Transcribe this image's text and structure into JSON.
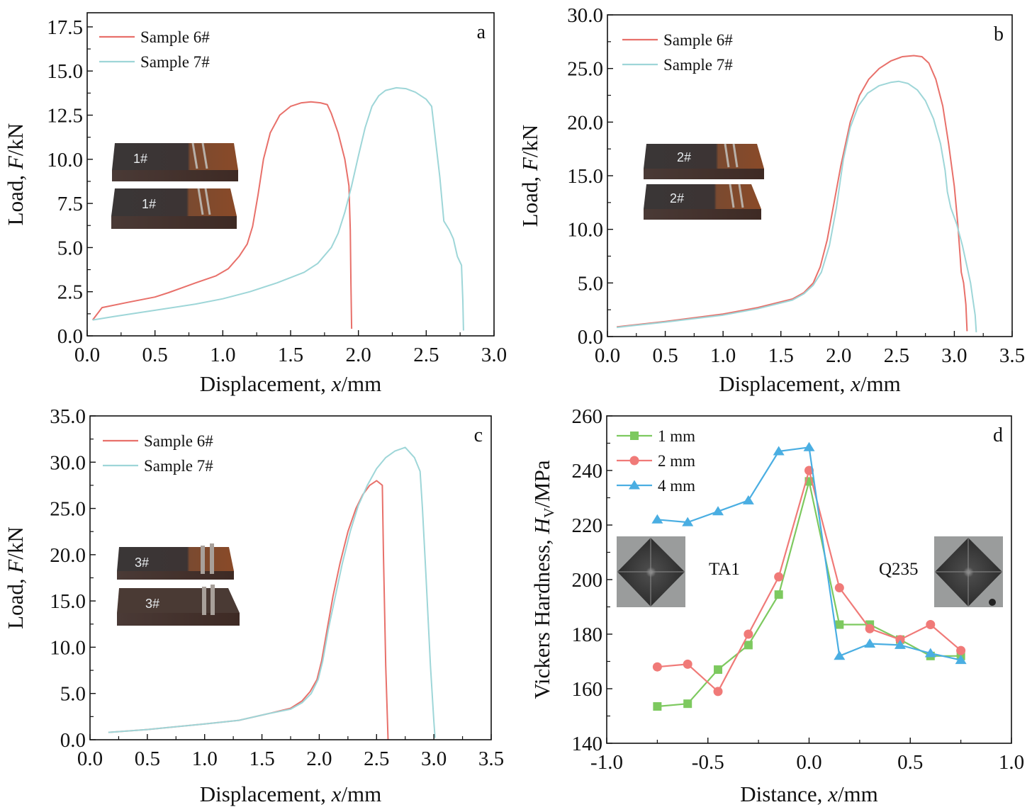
{
  "colors": {
    "sample6": "#E8706A",
    "sample7": "#9ED6D8",
    "d_1mm": "#7DC95F",
    "d_2mm": "#F07A78",
    "d_4mm": "#4AAEE2"
  },
  "chart_data": [
    {
      "id": "a",
      "type": "line",
      "panel_label": "a",
      "xlabel": "Displacement, x/mm",
      "ylabel": "Load, F/kN",
      "xlim": [
        0.0,
        3.0
      ],
      "ylim": [
        0.0,
        18.3
      ],
      "xticks": [
        "0.0",
        "0.5",
        "1.0",
        "1.5",
        "2.0",
        "2.5",
        "3.0"
      ],
      "xtick_values": [
        0.0,
        0.5,
        1.0,
        1.5,
        2.0,
        2.5,
        3.0
      ],
      "yticks": [
        "0.0",
        "2.5",
        "5.0",
        "7.5",
        "10.0",
        "12.5",
        "15.0",
        "17.5"
      ],
      "ytick_values": [
        0.0,
        2.5,
        5.0,
        7.5,
        10.0,
        12.5,
        15.0,
        17.5
      ],
      "legend": "top-left",
      "inset": "photo of two welded specimens labelled 1#",
      "series": [
        {
          "name": "Sample 6#",
          "x": [
            0.04,
            0.11,
            0.3,
            0.5,
            0.6,
            0.8,
            0.95,
            1.04,
            1.12,
            1.18,
            1.22,
            1.26,
            1.3,
            1.35,
            1.42,
            1.5,
            1.58,
            1.65,
            1.72,
            1.77,
            1.8,
            1.85,
            1.9,
            1.93,
            1.94,
            1.945,
            1.95
          ],
          "y": [
            0.9,
            1.6,
            1.9,
            2.2,
            2.45,
            3.0,
            3.4,
            3.8,
            4.5,
            5.2,
            6.2,
            8.0,
            10.0,
            11.5,
            12.5,
            13.0,
            13.2,
            13.25,
            13.2,
            13.1,
            12.6,
            11.5,
            10.0,
            8.5,
            6.0,
            3.0,
            0.4
          ]
        },
        {
          "name": "Sample 7#",
          "x": [
            0.04,
            0.2,
            0.5,
            0.8,
            1.0,
            1.2,
            1.4,
            1.6,
            1.7,
            1.8,
            1.85,
            1.9,
            1.95,
            2.0,
            2.05,
            2.1,
            2.15,
            2.2,
            2.28,
            2.35,
            2.42,
            2.5,
            2.54,
            2.57,
            2.6,
            2.63,
            2.67,
            2.7,
            2.73,
            2.76,
            2.77,
            2.775
          ],
          "y": [
            0.9,
            1.1,
            1.45,
            1.8,
            2.1,
            2.5,
            3.0,
            3.6,
            4.1,
            5.0,
            5.8,
            7.0,
            8.5,
            10.2,
            11.8,
            13.0,
            13.6,
            13.9,
            14.05,
            14.0,
            13.8,
            13.4,
            13.0,
            11.0,
            9.0,
            6.5,
            6.0,
            5.5,
            4.5,
            4.0,
            2.0,
            0.3
          ]
        }
      ]
    },
    {
      "id": "b",
      "type": "line",
      "panel_label": "b",
      "xlabel": "Displacement, x/mm",
      "ylabel": "Load, F/kN",
      "xlim": [
        0.0,
        3.5
      ],
      "ylim": [
        0.0,
        30.0
      ],
      "xticks": [
        "0.0",
        "0.5",
        "1.0",
        "1.5",
        "2.0",
        "2.5",
        "3.0",
        "3.5"
      ],
      "xtick_values": [
        0.0,
        0.5,
        1.0,
        1.5,
        2.0,
        2.5,
        3.0,
        3.5
      ],
      "yticks": [
        "0.0",
        "5.0",
        "10.0",
        "15.0",
        "20.0",
        "25.0",
        "30.0"
      ],
      "ytick_values": [
        0.0,
        5.0,
        10.0,
        15.0,
        20.0,
        25.0,
        30.0
      ],
      "legend": "top-left",
      "inset": "photo of two welded specimens labelled 2#",
      "series": [
        {
          "name": "Sample 6#",
          "x": [
            0.08,
            0.5,
            1.0,
            1.3,
            1.6,
            1.7,
            1.78,
            1.84,
            1.9,
            1.96,
            2.02,
            2.1,
            2.18,
            2.26,
            2.35,
            2.45,
            2.55,
            2.65,
            2.72,
            2.78,
            2.84,
            2.9,
            2.95,
            3.0,
            3.03,
            3.05,
            3.06,
            3.08,
            3.1,
            3.11
          ],
          "y": [
            0.9,
            1.4,
            2.1,
            2.7,
            3.5,
            4.1,
            5.0,
            6.5,
            9.0,
            12.5,
            16.0,
            20.0,
            22.5,
            24.0,
            25.0,
            25.7,
            26.1,
            26.2,
            26.1,
            25.5,
            24.0,
            21.5,
            18.0,
            14.0,
            10.5,
            7.5,
            6.0,
            5.0,
            3.0,
            0.5
          ]
        },
        {
          "name": "Sample 7#",
          "x": [
            0.08,
            0.5,
            1.0,
            1.3,
            1.6,
            1.7,
            1.78,
            1.85,
            1.92,
            1.98,
            2.04,
            2.1,
            2.17,
            2.25,
            2.35,
            2.45,
            2.52,
            2.6,
            2.68,
            2.75,
            2.82,
            2.88,
            2.92,
            2.94,
            2.97,
            3.02,
            3.07,
            3.11,
            3.14,
            3.16,
            3.18,
            3.19
          ],
          "y": [
            0.85,
            1.35,
            2.0,
            2.6,
            3.4,
            4.0,
            4.8,
            6.0,
            8.5,
            12.0,
            16.5,
            19.5,
            21.5,
            22.7,
            23.4,
            23.7,
            23.8,
            23.6,
            23.0,
            22.0,
            20.3,
            18.0,
            15.5,
            13.5,
            12.0,
            10.5,
            8.5,
            6.5,
            5.0,
            3.5,
            2.0,
            0.4
          ]
        }
      ]
    },
    {
      "id": "c",
      "type": "line",
      "panel_label": "c",
      "xlabel": "Displacement, x/mm",
      "ylabel": "Load, F/kN",
      "xlim": [
        0.0,
        3.5
      ],
      "ylim": [
        0.0,
        35.0
      ],
      "xticks": [
        "0.0",
        "0.5",
        "1.0",
        "1.5",
        "2.0",
        "2.5",
        "3.0",
        "3.5"
      ],
      "xtick_values": [
        0.0,
        0.5,
        1.0,
        1.5,
        2.0,
        2.5,
        3.0,
        3.5
      ],
      "yticks": [
        "0.0",
        "5.0",
        "10.0",
        "15.0",
        "20.0",
        "25.0",
        "30.0",
        "35.0"
      ],
      "ytick_values": [
        0.0,
        5.0,
        10.0,
        15.0,
        20.0,
        25.0,
        30.0,
        35.0
      ],
      "legend": "top-left",
      "inset": "photo of two welded specimens labelled 3#",
      "series": [
        {
          "name": "Sample 6#",
          "x": [
            0.16,
            0.5,
            1.0,
            1.3,
            1.55,
            1.75,
            1.85,
            1.92,
            1.98,
            2.02,
            2.07,
            2.12,
            2.18,
            2.25,
            2.32,
            2.38,
            2.44,
            2.5,
            2.55,
            2.56,
            2.58,
            2.6
          ],
          "y": [
            0.8,
            1.1,
            1.7,
            2.1,
            2.8,
            3.4,
            4.2,
            5.2,
            6.5,
            8.5,
            12.0,
            15.5,
            19.0,
            22.5,
            25.0,
            26.5,
            27.5,
            28.0,
            27.5,
            20.0,
            8.0,
            0.0
          ]
        },
        {
          "name": "Sample 7#",
          "x": [
            0.16,
            0.5,
            1.0,
            1.3,
            1.55,
            1.75,
            1.85,
            1.93,
            1.99,
            2.03,
            2.08,
            2.14,
            2.2,
            2.27,
            2.34,
            2.42,
            2.5,
            2.58,
            2.66,
            2.75,
            2.83,
            2.88,
            2.9,
            2.93,
            2.97,
            3.0,
            3.01
          ],
          "y": [
            0.8,
            1.1,
            1.7,
            2.1,
            2.8,
            3.3,
            4.0,
            5.0,
            6.5,
            8.5,
            12.0,
            15.5,
            19.0,
            22.5,
            25.3,
            27.5,
            29.3,
            30.5,
            31.2,
            31.6,
            30.5,
            29.0,
            25.0,
            18.0,
            8.0,
            2.0,
            0.2
          ]
        }
      ]
    },
    {
      "id": "d",
      "type": "line",
      "panel_label": "d",
      "xlabel": "Distance, x/mm",
      "ylabel": "Vickers Hardness, HV/MPa",
      "xlim": [
        -1.0,
        1.0
      ],
      "ylim": [
        140,
        260
      ],
      "xticks": [
        "-1.0",
        "-0.5",
        "0.0",
        "0.5",
        "1.0"
      ],
      "xtick_values": [
        -1.0,
        -0.5,
        0.0,
        0.5,
        1.0
      ],
      "yticks": [
        "140",
        "160",
        "180",
        "200",
        "220",
        "240",
        "260"
      ],
      "ytick_values": [
        140,
        160,
        180,
        200,
        220,
        240,
        260
      ],
      "legend": "top-left",
      "annotations": [
        "TA1",
        "Q235"
      ],
      "x": [
        -0.75,
        -0.6,
        -0.45,
        -0.3,
        -0.15,
        0.0,
        0.15,
        0.3,
        0.45,
        0.6,
        0.75
      ],
      "series": [
        {
          "name": "1 mm",
          "marker": "square",
          "values": [
            153.5,
            154.5,
            167,
            176,
            194.5,
            236,
            183.5,
            183.5,
            178,
            172,
            172
          ]
        },
        {
          "name": "2 mm",
          "marker": "circle",
          "values": [
            168,
            169,
            159,
            180,
            201,
            240,
            197,
            182,
            178,
            183.5,
            174
          ]
        },
        {
          "name": "4 mm",
          "marker": "triangle",
          "values": [
            222,
            221,
            225,
            229,
            247,
            248.5,
            172,
            176.5,
            176,
            173,
            170.5
          ]
        }
      ]
    }
  ]
}
